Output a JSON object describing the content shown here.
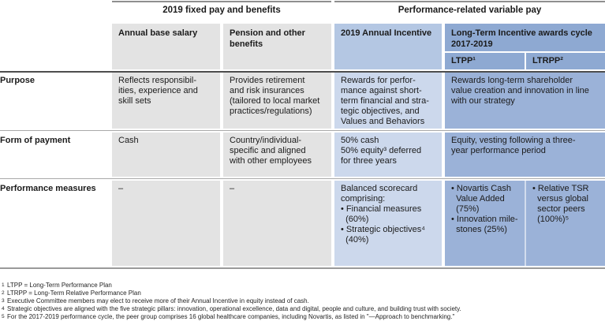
{
  "table": {
    "group_headers": {
      "fixed": "2019 fixed pay and benefits",
      "variable": "Performance-related variable pay"
    },
    "columns": {
      "base_salary": "Annual base salary",
      "pension": "Pension and other benefits",
      "annual_incentive": "2019 Annual Incentive",
      "lti": "Long-Term Incentive awards cycle 2017-2019",
      "ltpp": "LTPP¹",
      "ltrpp": "LTRPP²"
    },
    "rows": {
      "purpose": {
        "label": "Purpose",
        "base_salary": "Reflects responsibil-\nities, experience and\nskill sets",
        "pension": "Provides retirement\nand risk insurances\n(tailored to local market\npractices/regulations)",
        "annual_incentive": "Rewards for perfor-\nmance against short-\nterm financial and stra-\ntegic objectives, and\nValues and Behaviors",
        "lti": "Rewards long-term shareholder\nvalue creation and innovation in line\nwith our strategy"
      },
      "form_of_payment": {
        "label": "Form of payment",
        "base_salary": "Cash",
        "pension": "Country/individual-\nspecific and aligned\nwith other employees",
        "annual_incentive": "50% cash\n50% equity³ deferred\nfor three years",
        "lti": "Equity, vesting following a three-\nyear performance period"
      },
      "performance_measures": {
        "label": "Performance measures",
        "base_salary": "–",
        "pension": "–",
        "annual_incentive": "Balanced scorecard\ncomprising:\n• Financial measures\n  (60%)\n• Strategic objectives⁴\n  (40%)",
        "ltpp": "• Novartis Cash\n  Value Added\n  (75%)\n• Innovation mile-\n  stones (25%)",
        "ltrpp": "• Relative TSR\n  versus global\n  sector peers\n  (100%)⁵"
      }
    }
  },
  "footnotes": [
    {
      "sup": "1",
      "text": "LTPP = Long-Term Performance Plan"
    },
    {
      "sup": "2",
      "text": "LTRPP = Long-Term Relative Performance Plan"
    },
    {
      "sup": "3",
      "text": "Executive Committee members may elect to receive more of their Annual Incentive in equity instead of cash."
    },
    {
      "sup": "4",
      "text": "Strategic objectives are aligned with the five strategic pillars: innovation, operational excellence, data and digital, people and culture, and building trust with society."
    },
    {
      "sup": "5",
      "text": "For the 2017-2019 performance cycle, the peer group comprises 16 global healthcare companies, including Novartis, as listed in \"—Approach to benchmarking.\""
    }
  ],
  "colors": {
    "gray_cell": "#e3e3e3",
    "annual_incentive_header": "#b4c7e3",
    "annual_incentive_body": "#ccd8ec",
    "lti_header": "#8ea9d2",
    "lti_body": "#9bb2d8",
    "rule_dark": "#4d4d4d",
    "rule_gray": "#9a9a9a"
  }
}
